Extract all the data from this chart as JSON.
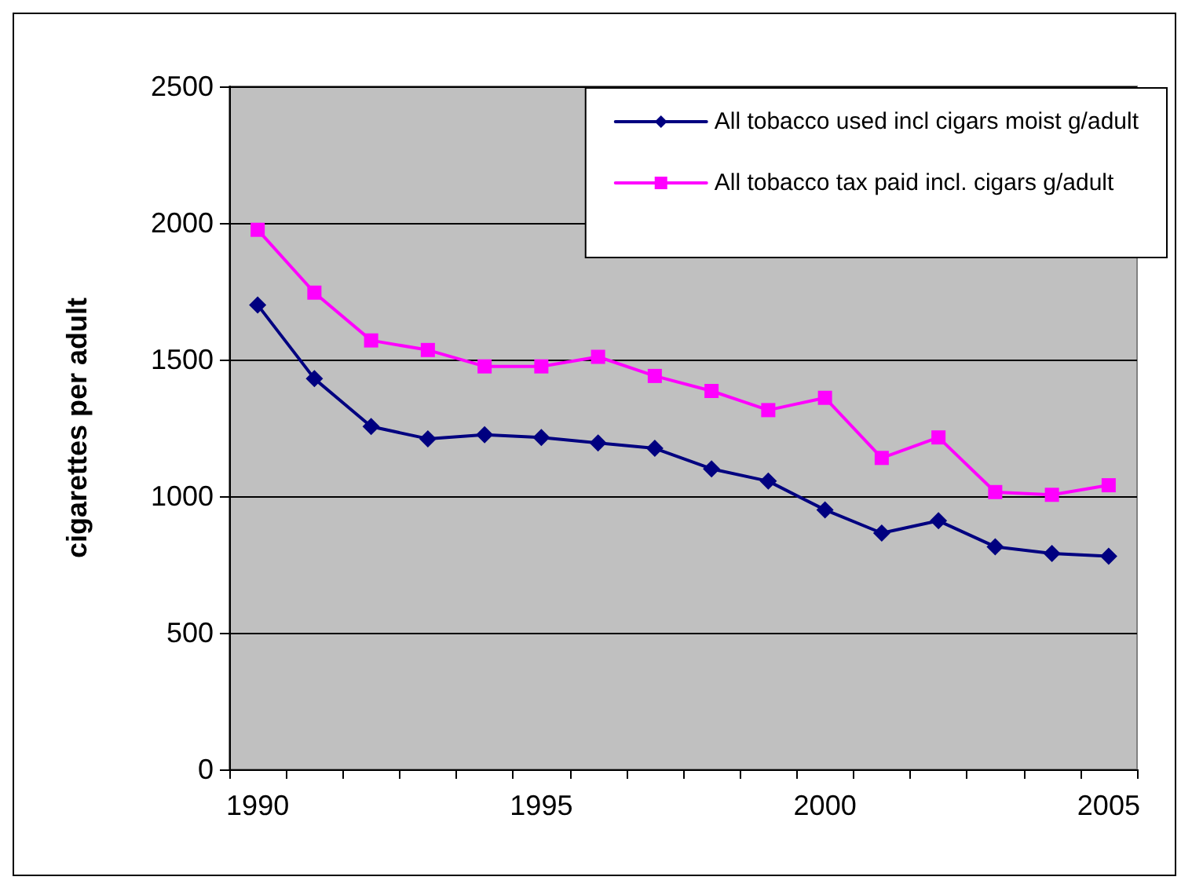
{
  "chart_data": {
    "type": "line",
    "ylabel": "cigarettes per adult",
    "categories": [
      "1990",
      null,
      null,
      null,
      null,
      "1995",
      null,
      null,
      null,
      null,
      "2000",
      null,
      null,
      null,
      null,
      "2005"
    ],
    "series": [
      {
        "name": "All tobacco used incl cigars moist g/adult",
        "color": "#000080",
        "marker": "diamond",
        "values": [
          1700,
          1430,
          1255,
          1210,
          1225,
          1215,
          1195,
          1175,
          1100,
          1055,
          950,
          865,
          910,
          815,
          790,
          780
        ]
      },
      {
        "name": "All tobacco tax paid incl. cigars g/adult",
        "color": "#ff00ff",
        "marker": "square",
        "values": [
          1975,
          1745,
          1570,
          1535,
          1475,
          1475,
          1510,
          1440,
          1385,
          1315,
          1360,
          1140,
          1215,
          1015,
          1005,
          1040
        ]
      }
    ],
    "ylim": [
      0,
      2500
    ],
    "yticks": [
      0,
      500,
      1000,
      1500,
      2000,
      2500
    ],
    "grid": "y",
    "legend": "top right"
  }
}
